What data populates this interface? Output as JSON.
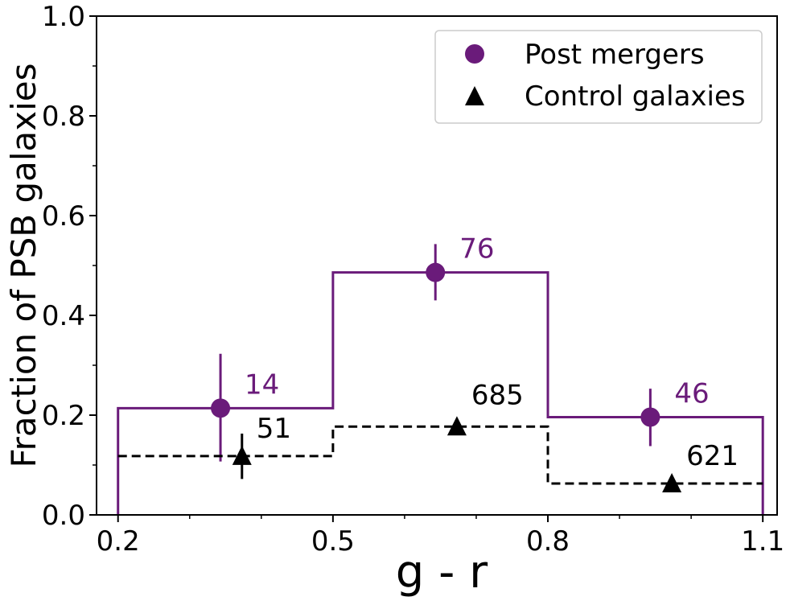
{
  "chart_data": {
    "type": "step-histogram",
    "xlabel": "g - r",
    "ylabel": "Fraction of PSB galaxies",
    "xlim": [
      0.17,
      1.12
    ],
    "ylim": [
      0.0,
      1.0
    ],
    "xticks": [
      {
        "value": 0.2,
        "label": "0.2"
      },
      {
        "value": 0.5,
        "label": "0.5"
      },
      {
        "value": 0.8,
        "label": "0.8"
      },
      {
        "value": 1.1,
        "label": "1.1"
      }
    ],
    "xminor": [
      0.3,
      0.4,
      0.6,
      0.7,
      0.9,
      1.0
    ],
    "yticks": [
      {
        "value": 0.0,
        "label": "0.0"
      },
      {
        "value": 0.2,
        "label": "0.2"
      },
      {
        "value": 0.4,
        "label": "0.4"
      },
      {
        "value": 0.6,
        "label": "0.6"
      },
      {
        "value": 0.8,
        "label": "0.8"
      },
      {
        "value": 1.0,
        "label": "1.0"
      }
    ],
    "yminor": [
      0.1,
      0.3,
      0.5,
      0.7,
      0.9
    ],
    "bin_edges": [
      0.2,
      0.5,
      0.8,
      1.1
    ],
    "series": [
      {
        "name": "Post mergers",
        "color": "#6a1b7a",
        "line_style": "solid",
        "marker": "circle",
        "values": [
          0.214,
          0.486,
          0.196
        ],
        "points_x": [
          0.343,
          0.643,
          0.943
        ],
        "error_low": [
          0.107,
          0.43,
          0.138
        ],
        "error_high": [
          0.323,
          0.543,
          0.253
        ],
        "counts": [
          "14",
          "76",
          "46"
        ]
      },
      {
        "name": "Control galaxies",
        "color": "#000000",
        "line_style": "dashed",
        "marker": "triangle",
        "values": [
          0.118,
          0.177,
          0.063
        ],
        "points_x": [
          0.373,
          0.673,
          0.973
        ],
        "error_low": [
          0.072,
          0.162,
          0.053
        ],
        "error_high": [
          0.163,
          0.192,
          0.073
        ],
        "counts": [
          "51",
          "685",
          "621"
        ]
      }
    ],
    "legend": {
      "position": "top-right",
      "entries": [
        "Post mergers",
        "Control galaxies"
      ]
    }
  }
}
